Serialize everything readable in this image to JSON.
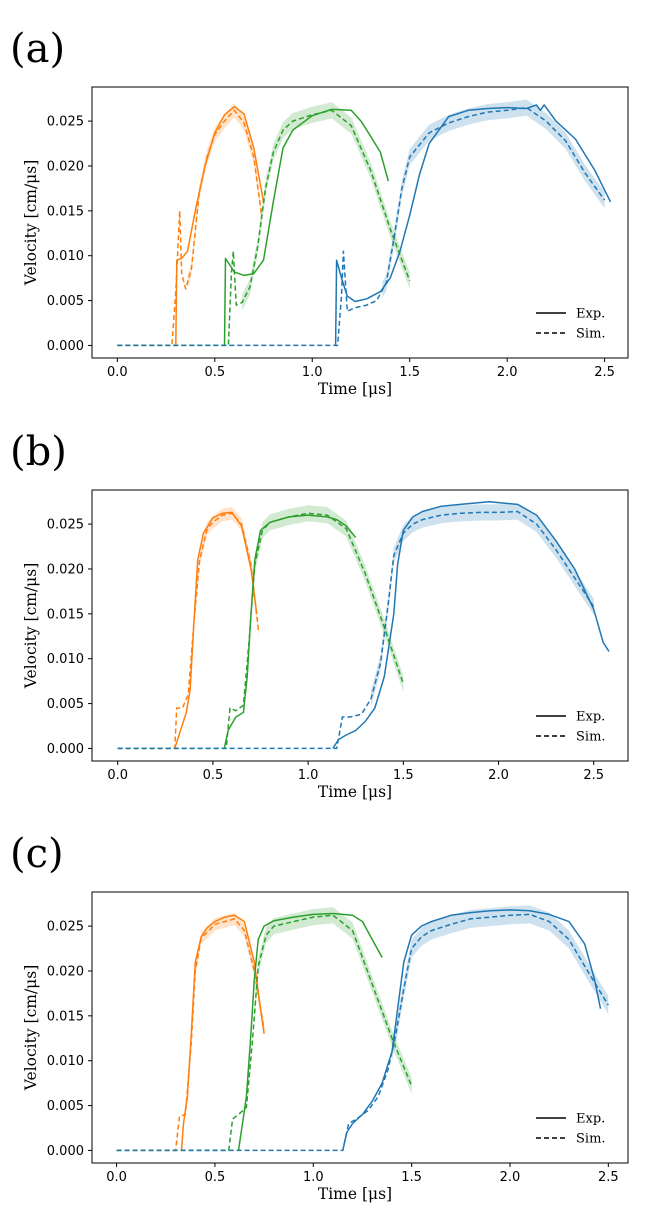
{
  "colors": {
    "blue": "#1f77b4",
    "orange": "#ff7f0e",
    "green": "#2ca02c"
  },
  "chart_data": [
    {
      "type": "line",
      "panel_label": "(a)",
      "xlabel": "Time [μs]",
      "ylabel": "Velocity [cm/μs]",
      "xlim": [
        -0.13,
        2.62
      ],
      "ylim": [
        -0.0014,
        0.0288
      ],
      "xticks": [
        0.0,
        0.5,
        1.0,
        1.5,
        2.0,
        2.5
      ],
      "xtick_labels": [
        "0.0",
        "0.5",
        "1.0",
        "1.5",
        "2.0",
        "2.5"
      ],
      "yticks": [
        0.0,
        0.005,
        0.01,
        0.015,
        0.02,
        0.025
      ],
      "ytick_labels": [
        "0.000",
        "0.005",
        "0.010",
        "0.015",
        "0.020",
        "0.025"
      ],
      "legend": {
        "position": "lower-right",
        "entries": [
          {
            "label": "Exp.",
            "style": "solid"
          },
          {
            "label": "Sim.",
            "style": "dashed"
          }
        ]
      },
      "series": [
        {
          "name": "orange-exp",
          "color": "orange",
          "style": "solid",
          "x": [
            0.3,
            0.305,
            0.33,
            0.36,
            0.4,
            0.45,
            0.5,
            0.55,
            0.6,
            0.65,
            0.7,
            0.75
          ],
          "y": [
            0.0,
            0.0095,
            0.0097,
            0.0105,
            0.015,
            0.02,
            0.0237,
            0.0257,
            0.0266,
            0.0258,
            0.022,
            0.016
          ]
        },
        {
          "name": "orange-sim",
          "color": "orange",
          "style": "dashed",
          "x": [
            0.0,
            0.28,
            0.3,
            0.32,
            0.33,
            0.35,
            0.38,
            0.42,
            0.46,
            0.5,
            0.55,
            0.6,
            0.65,
            0.7,
            0.74
          ],
          "y": [
            0.0,
            0.0,
            0.006,
            0.015,
            0.008,
            0.0063,
            0.0085,
            0.017,
            0.021,
            0.0235,
            0.025,
            0.0262,
            0.0248,
            0.021,
            0.0145
          ]
        },
        {
          "name": "green-exp",
          "color": "green",
          "style": "solid",
          "x": [
            0.55,
            0.555,
            0.6,
            0.65,
            0.7,
            0.75,
            0.8,
            0.85,
            0.9,
            1.0,
            1.1,
            1.2,
            1.25,
            1.3,
            1.35,
            1.39
          ],
          "y": [
            0.0,
            0.0097,
            0.0082,
            0.0078,
            0.008,
            0.0095,
            0.016,
            0.022,
            0.024,
            0.0256,
            0.0263,
            0.0262,
            0.025,
            0.0233,
            0.0215,
            0.0183
          ]
        },
        {
          "name": "green-sim",
          "color": "green",
          "style": "dashed",
          "x": [
            0.0,
            0.57,
            0.585,
            0.595,
            0.61,
            0.64,
            0.68,
            0.72,
            0.76,
            0.8,
            0.85,
            0.9,
            1.0,
            1.1,
            1.2,
            1.3,
            1.4,
            1.5
          ],
          "y": [
            0.0,
            0.0,
            0.008,
            0.0105,
            0.0045,
            0.0048,
            0.0065,
            0.011,
            0.0175,
            0.0215,
            0.024,
            0.025,
            0.0257,
            0.0262,
            0.0245,
            0.0195,
            0.013,
            0.0072
          ]
        },
        {
          "name": "blue-exp",
          "color": "blue",
          "style": "solid",
          "x": [
            1.12,
            1.125,
            1.15,
            1.18,
            1.22,
            1.28,
            1.35,
            1.4,
            1.45,
            1.5,
            1.55,
            1.6,
            1.7,
            1.8,
            1.9,
            2.0,
            2.1,
            2.15,
            2.17,
            2.19,
            2.25,
            2.35,
            2.45,
            2.53
          ],
          "y": [
            0.0,
            0.0095,
            0.0075,
            0.0055,
            0.0049,
            0.0052,
            0.006,
            0.0075,
            0.0105,
            0.0145,
            0.019,
            0.0225,
            0.0255,
            0.0262,
            0.0264,
            0.0265,
            0.0264,
            0.0268,
            0.0262,
            0.0268,
            0.025,
            0.023,
            0.0195,
            0.016
          ]
        },
        {
          "name": "blue-sim",
          "color": "blue",
          "style": "dashed",
          "x": [
            0.0,
            1.13,
            1.15,
            1.16,
            1.18,
            1.22,
            1.28,
            1.33,
            1.38,
            1.42,
            1.46,
            1.5,
            1.6,
            1.7,
            1.8,
            1.9,
            2.0,
            2.1,
            2.2,
            2.3,
            2.4,
            2.5
          ],
          "y": [
            0.0,
            0.0,
            0.0055,
            0.0105,
            0.0038,
            0.0042,
            0.0045,
            0.005,
            0.007,
            0.012,
            0.0175,
            0.021,
            0.0237,
            0.0248,
            0.0255,
            0.026,
            0.0262,
            0.0265,
            0.025,
            0.0228,
            0.0192,
            0.0162
          ]
        }
      ],
      "bands": [
        {
          "name": "orange-band",
          "color": "orange",
          "of": "orange-sim",
          "x_min": 0.36,
          "half_width": 0.0008
        },
        {
          "name": "green-band",
          "color": "green",
          "of": "green-sim",
          "x_min": 0.64,
          "half_width": 0.0009
        },
        {
          "name": "blue-band",
          "color": "blue",
          "of": "blue-sim",
          "x_min": 1.36,
          "half_width": 0.0009
        }
      ]
    },
    {
      "type": "line",
      "panel_label": "(b)",
      "xlabel": "Time [μs]",
      "ylabel": "Velocity [cm/μs]",
      "xlim": [
        -0.135,
        2.68
      ],
      "ylim": [
        -0.0014,
        0.0288
      ],
      "xticks": [
        0.0,
        0.5,
        1.0,
        1.5,
        2.0,
        2.5
      ],
      "xtick_labels": [
        "0.0",
        "0.5",
        "1.0",
        "1.5",
        "2.0",
        "2.5"
      ],
      "yticks": [
        0.0,
        0.005,
        0.01,
        0.015,
        0.02,
        0.025
      ],
      "ytick_labels": [
        "0.000",
        "0.005",
        "0.010",
        "0.015",
        "0.020",
        "0.025"
      ],
      "legend": {
        "position": "lower-right",
        "entries": [
          {
            "label": "Exp.",
            "style": "solid"
          },
          {
            "label": "Sim.",
            "style": "dashed"
          }
        ]
      },
      "series": [
        {
          "name": "orange-exp",
          "color": "orange",
          "style": "solid",
          "x": [
            0.3,
            0.33,
            0.36,
            0.38,
            0.4,
            0.42,
            0.45,
            0.5,
            0.55,
            0.6,
            0.65,
            0.7,
            0.73
          ],
          "y": [
            0.0,
            0.002,
            0.004,
            0.0065,
            0.014,
            0.021,
            0.024,
            0.0257,
            0.0262,
            0.0263,
            0.0248,
            0.02,
            0.015
          ]
        },
        {
          "name": "orange-sim",
          "color": "orange",
          "style": "dashed",
          "x": [
            0.0,
            0.3,
            0.31,
            0.34,
            0.37,
            0.4,
            0.43,
            0.47,
            0.5,
            0.55,
            0.6,
            0.65,
            0.7,
            0.74
          ],
          "y": [
            0.0,
            0.0,
            0.0045,
            0.0045,
            0.006,
            0.014,
            0.021,
            0.0245,
            0.0252,
            0.026,
            0.0262,
            0.025,
            0.0205,
            0.013
          ]
        },
        {
          "name": "green-exp",
          "color": "green",
          "style": "solid",
          "x": [
            0.56,
            0.58,
            0.62,
            0.66,
            0.68,
            0.7,
            0.72,
            0.75,
            0.8,
            0.9,
            1.0,
            1.1,
            1.15,
            1.2,
            1.25
          ],
          "y": [
            0.0,
            0.002,
            0.0035,
            0.004,
            0.008,
            0.015,
            0.021,
            0.0243,
            0.0252,
            0.0258,
            0.026,
            0.0258,
            0.0255,
            0.0248,
            0.0235
          ]
        },
        {
          "name": "green-sim",
          "color": "green",
          "style": "dashed",
          "x": [
            0.0,
            0.57,
            0.59,
            0.62,
            0.66,
            0.69,
            0.72,
            0.76,
            0.8,
            0.9,
            1.0,
            1.1,
            1.2,
            1.3,
            1.4,
            1.5
          ],
          "y": [
            0.0,
            0.0,
            0.0045,
            0.0042,
            0.0048,
            0.012,
            0.0205,
            0.0243,
            0.0252,
            0.0258,
            0.0262,
            0.026,
            0.0245,
            0.0195,
            0.0135,
            0.0072
          ]
        },
        {
          "name": "blue-exp",
          "color": "blue",
          "style": "solid",
          "x": [
            1.13,
            1.16,
            1.2,
            1.25,
            1.3,
            1.35,
            1.4,
            1.45,
            1.47,
            1.5,
            1.55,
            1.6,
            1.7,
            1.8,
            1.9,
            1.95,
            2.0,
            2.1,
            2.2,
            2.3,
            2.4,
            2.5,
            2.55,
            2.58
          ],
          "y": [
            0.0,
            0.001,
            0.0015,
            0.002,
            0.003,
            0.0045,
            0.008,
            0.015,
            0.0205,
            0.0243,
            0.0258,
            0.0264,
            0.027,
            0.0272,
            0.0274,
            0.0275,
            0.0274,
            0.0272,
            0.026,
            0.0232,
            0.02,
            0.0155,
            0.0118,
            0.0108
          ]
        },
        {
          "name": "blue-sim",
          "color": "blue",
          "style": "dashed",
          "x": [
            0.0,
            1.15,
            1.18,
            1.22,
            1.28,
            1.33,
            1.38,
            1.42,
            1.45,
            1.5,
            1.55,
            1.6,
            1.7,
            1.8,
            1.9,
            2.0,
            2.1,
            2.2,
            2.3,
            2.4,
            2.5
          ],
          "y": [
            0.0,
            0.0,
            0.0035,
            0.0035,
            0.0038,
            0.0055,
            0.0095,
            0.016,
            0.0215,
            0.024,
            0.025,
            0.0255,
            0.026,
            0.0262,
            0.0263,
            0.0263,
            0.0264,
            0.025,
            0.0222,
            0.019,
            0.0158
          ]
        }
      ],
      "bands": [
        {
          "name": "orange-band",
          "color": "orange",
          "of": "orange-sim",
          "x_min": 0.4,
          "half_width": 0.0007
        },
        {
          "name": "green-band",
          "color": "green",
          "of": "green-sim",
          "x_min": 0.7,
          "half_width": 0.0009
        },
        {
          "name": "blue-band",
          "color": "blue",
          "of": "blue-sim",
          "x_min": 1.33,
          "half_width": 0.0009
        }
      ]
    },
    {
      "type": "line",
      "panel_label": "(c)",
      "xlabel": "Time [μs]",
      "ylabel": "Velocity [cm/μs]",
      "xlim": [
        -0.125,
        2.6
      ],
      "ylim": [
        -0.0014,
        0.0288
      ],
      "xticks": [
        0.0,
        0.5,
        1.0,
        1.5,
        2.0,
        2.5
      ],
      "xtick_labels": [
        "0.0",
        "0.5",
        "1.0",
        "1.5",
        "2.0",
        "2.5"
      ],
      "yticks": [
        0.0,
        0.005,
        0.01,
        0.015,
        0.02,
        0.025
      ],
      "ytick_labels": [
        "0.000",
        "0.005",
        "0.010",
        "0.015",
        "0.020",
        "0.025"
      ],
      "legend": {
        "position": "lower-right",
        "entries": [
          {
            "label": "Exp.",
            "style": "solid"
          },
          {
            "label": "Sim.",
            "style": "dashed"
          }
        ]
      },
      "series": [
        {
          "name": "orange-exp",
          "color": "orange",
          "style": "solid",
          "x": [
            0.33,
            0.34,
            0.36,
            0.38,
            0.4,
            0.43,
            0.46,
            0.5,
            0.55,
            0.6,
            0.65,
            0.7,
            0.73,
            0.75
          ],
          "y": [
            0.0,
            0.003,
            0.006,
            0.013,
            0.021,
            0.0238,
            0.0248,
            0.0255,
            0.026,
            0.0262,
            0.0255,
            0.021,
            0.016,
            0.013
          ]
        },
        {
          "name": "orange-sim",
          "color": "orange",
          "style": "dashed",
          "x": [
            0.0,
            0.3,
            0.32,
            0.35,
            0.38,
            0.4,
            0.43,
            0.47,
            0.5,
            0.55,
            0.6,
            0.65,
            0.7,
            0.75
          ],
          "y": [
            0.0,
            0.0,
            0.0038,
            0.004,
            0.012,
            0.02,
            0.0237,
            0.0245,
            0.0252,
            0.0255,
            0.0258,
            0.0245,
            0.02,
            0.0135
          ]
        },
        {
          "name": "green-exp",
          "color": "green",
          "style": "solid",
          "x": [
            0.62,
            0.64,
            0.66,
            0.68,
            0.7,
            0.72,
            0.75,
            0.8,
            0.9,
            1.0,
            1.1,
            1.2,
            1.25,
            1.3,
            1.35
          ],
          "y": [
            0.0,
            0.003,
            0.006,
            0.012,
            0.019,
            0.0235,
            0.025,
            0.0256,
            0.026,
            0.0263,
            0.0264,
            0.0262,
            0.0255,
            0.0235,
            0.0215
          ]
        },
        {
          "name": "green-sim",
          "color": "green",
          "style": "dashed",
          "x": [
            0.0,
            0.57,
            0.59,
            0.62,
            0.66,
            0.69,
            0.72,
            0.76,
            0.8,
            0.9,
            1.0,
            1.1,
            1.2,
            1.3,
            1.4,
            1.5
          ],
          "y": [
            0.0,
            0.0,
            0.0035,
            0.004,
            0.0048,
            0.012,
            0.0205,
            0.024,
            0.025,
            0.0255,
            0.026,
            0.0262,
            0.0245,
            0.0185,
            0.0125,
            0.0072
          ]
        },
        {
          "name": "blue-exp",
          "color": "blue",
          "style": "solid",
          "x": [
            1.15,
            1.17,
            1.2,
            1.25,
            1.3,
            1.35,
            1.4,
            1.43,
            1.46,
            1.5,
            1.55,
            1.6,
            1.7,
            1.8,
            1.9,
            2.0,
            2.1,
            2.2,
            2.3,
            2.38,
            2.43,
            2.46
          ],
          "y": [
            0.0,
            0.002,
            0.003,
            0.004,
            0.0055,
            0.0075,
            0.011,
            0.016,
            0.021,
            0.024,
            0.025,
            0.0255,
            0.0262,
            0.0265,
            0.0267,
            0.0268,
            0.0267,
            0.0263,
            0.0255,
            0.023,
            0.019,
            0.0158
          ]
        },
        {
          "name": "blue-sim",
          "color": "blue",
          "style": "dashed",
          "x": [
            0.0,
            1.15,
            1.18,
            1.22,
            1.28,
            1.33,
            1.38,
            1.42,
            1.46,
            1.5,
            1.55,
            1.6,
            1.7,
            1.8,
            1.9,
            2.0,
            2.1,
            2.2,
            2.3,
            2.4,
            2.5
          ],
          "y": [
            0.0,
            0.0,
            0.003,
            0.0035,
            0.0045,
            0.006,
            0.009,
            0.013,
            0.018,
            0.0225,
            0.0238,
            0.0245,
            0.0252,
            0.0258,
            0.026,
            0.0262,
            0.0263,
            0.0255,
            0.0235,
            0.0198,
            0.0162
          ]
        }
      ],
      "bands": [
        {
          "name": "orange-band",
          "color": "orange",
          "of": "orange-sim",
          "x_min": 0.4,
          "half_width": 0.0007
        },
        {
          "name": "green-band",
          "color": "green",
          "of": "green-sim",
          "x_min": 0.7,
          "half_width": 0.0009
        },
        {
          "name": "blue-band",
          "color": "blue",
          "of": "blue-sim",
          "x_min": 1.4,
          "half_width": 0.001
        }
      ]
    }
  ]
}
